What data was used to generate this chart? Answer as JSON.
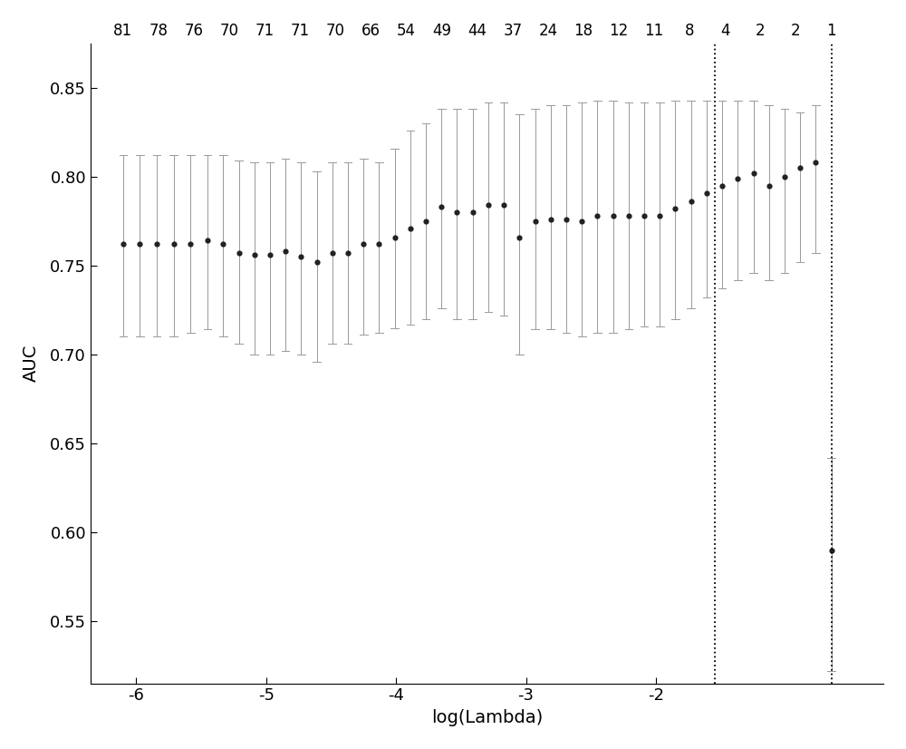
{
  "title": "",
  "xlabel": "log(Lambda)",
  "ylabel": "AUC",
  "top_labels": [
    81,
    78,
    76,
    70,
    71,
    71,
    70,
    66,
    54,
    49,
    44,
    37,
    24,
    18,
    12,
    11,
    8,
    4,
    2,
    2,
    1
  ],
  "xlim": [
    -6.35,
    -0.25
  ],
  "ylim": [
    0.515,
    0.875
  ],
  "yticks": [
    0.55,
    0.6,
    0.65,
    0.7,
    0.75,
    0.8,
    0.85
  ],
  "xticks": [
    -6,
    -5,
    -4,
    -3,
    -2
  ],
  "x_values": [
    -6.1,
    -5.97,
    -5.84,
    -5.71,
    -5.58,
    -5.45,
    -5.33,
    -5.21,
    -5.09,
    -4.97,
    -4.85,
    -4.73,
    -4.61,
    -4.49,
    -4.37,
    -4.25,
    -4.13,
    -4.01,
    -3.89,
    -3.77,
    -3.65,
    -3.53,
    -3.41,
    -3.29,
    -3.17,
    -3.05,
    -2.93,
    -2.81,
    -2.69,
    -2.57,
    -2.45,
    -2.33,
    -2.21,
    -2.09,
    -1.97,
    -1.85,
    -1.73,
    -1.61,
    -1.49,
    -1.37,
    -1.25,
    -1.13,
    -1.01,
    -0.89,
    -0.77,
    -0.65
  ],
  "auc_mean": [
    0.762,
    0.762,
    0.762,
    0.762,
    0.762,
    0.764,
    0.762,
    0.757,
    0.756,
    0.756,
    0.758,
    0.755,
    0.752,
    0.757,
    0.757,
    0.762,
    0.762,
    0.766,
    0.771,
    0.775,
    0.783,
    0.78,
    0.78,
    0.784,
    0.784,
    0.766,
    0.775,
    0.776,
    0.776,
    0.775,
    0.778,
    0.778,
    0.778,
    0.778,
    0.778,
    0.782,
    0.786,
    0.791,
    0.795,
    0.799,
    0.802,
    0.795,
    0.8,
    0.805,
    0.808,
    0.59
  ],
  "auc_upper": [
    0.812,
    0.812,
    0.812,
    0.812,
    0.812,
    0.812,
    0.812,
    0.809,
    0.808,
    0.808,
    0.81,
    0.808,
    0.803,
    0.808,
    0.808,
    0.81,
    0.808,
    0.816,
    0.826,
    0.83,
    0.838,
    0.838,
    0.838,
    0.842,
    0.842,
    0.835,
    0.838,
    0.84,
    0.84,
    0.842,
    0.843,
    0.843,
    0.842,
    0.842,
    0.842,
    0.843,
    0.843,
    0.843,
    0.843,
    0.843,
    0.843,
    0.84,
    0.838,
    0.836,
    0.84,
    0.642
  ],
  "auc_lower": [
    0.71,
    0.71,
    0.71,
    0.71,
    0.712,
    0.714,
    0.71,
    0.706,
    0.7,
    0.7,
    0.702,
    0.7,
    0.696,
    0.706,
    0.706,
    0.711,
    0.712,
    0.715,
    0.717,
    0.72,
    0.726,
    0.72,
    0.72,
    0.724,
    0.722,
    0.7,
    0.714,
    0.714,
    0.712,
    0.71,
    0.712,
    0.712,
    0.714,
    0.716,
    0.716,
    0.72,
    0.726,
    0.732,
    0.737,
    0.742,
    0.746,
    0.742,
    0.746,
    0.752,
    0.757,
    0.522
  ],
  "vline1_x": -1.55,
  "vline2_x": -0.65,
  "dot_color": "#222222",
  "errorbar_color": "#999999",
  "vline_color": "#000000",
  "background_color": "#ffffff"
}
